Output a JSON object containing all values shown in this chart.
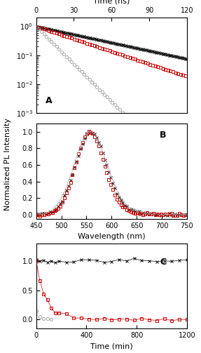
{
  "panel_A": {
    "title_x": "Time (ns)",
    "xlim": [
      0,
      120
    ],
    "ylim_log": [
      0.001,
      2
    ],
    "xticks": [
      0,
      30,
      60,
      90,
      120
    ],
    "label_A": "A"
  },
  "panel_B": {
    "xlabel": "Wavelength (nm)",
    "xlim": [
      450,
      750
    ],
    "ylim": [
      -0.05,
      1.1
    ],
    "xticks": [
      450,
      500,
      550,
      600,
      650,
      700,
      750
    ],
    "yticks": [
      0.0,
      0.2,
      0.4,
      0.6,
      0.8,
      1.0
    ],
    "label_B": "B"
  },
  "panel_C": {
    "xlabel": "Time (min)",
    "xlim": [
      0,
      1200
    ],
    "ylim": [
      -0.15,
      1.3
    ],
    "xticks": [
      0,
      400,
      800,
      1200
    ],
    "yticks": [
      0.0,
      0.5,
      1.0
    ],
    "label_C": "C"
  },
  "colors": {
    "black": "#000000",
    "red": "#cc0000",
    "gray": "#aaaaaa"
  }
}
